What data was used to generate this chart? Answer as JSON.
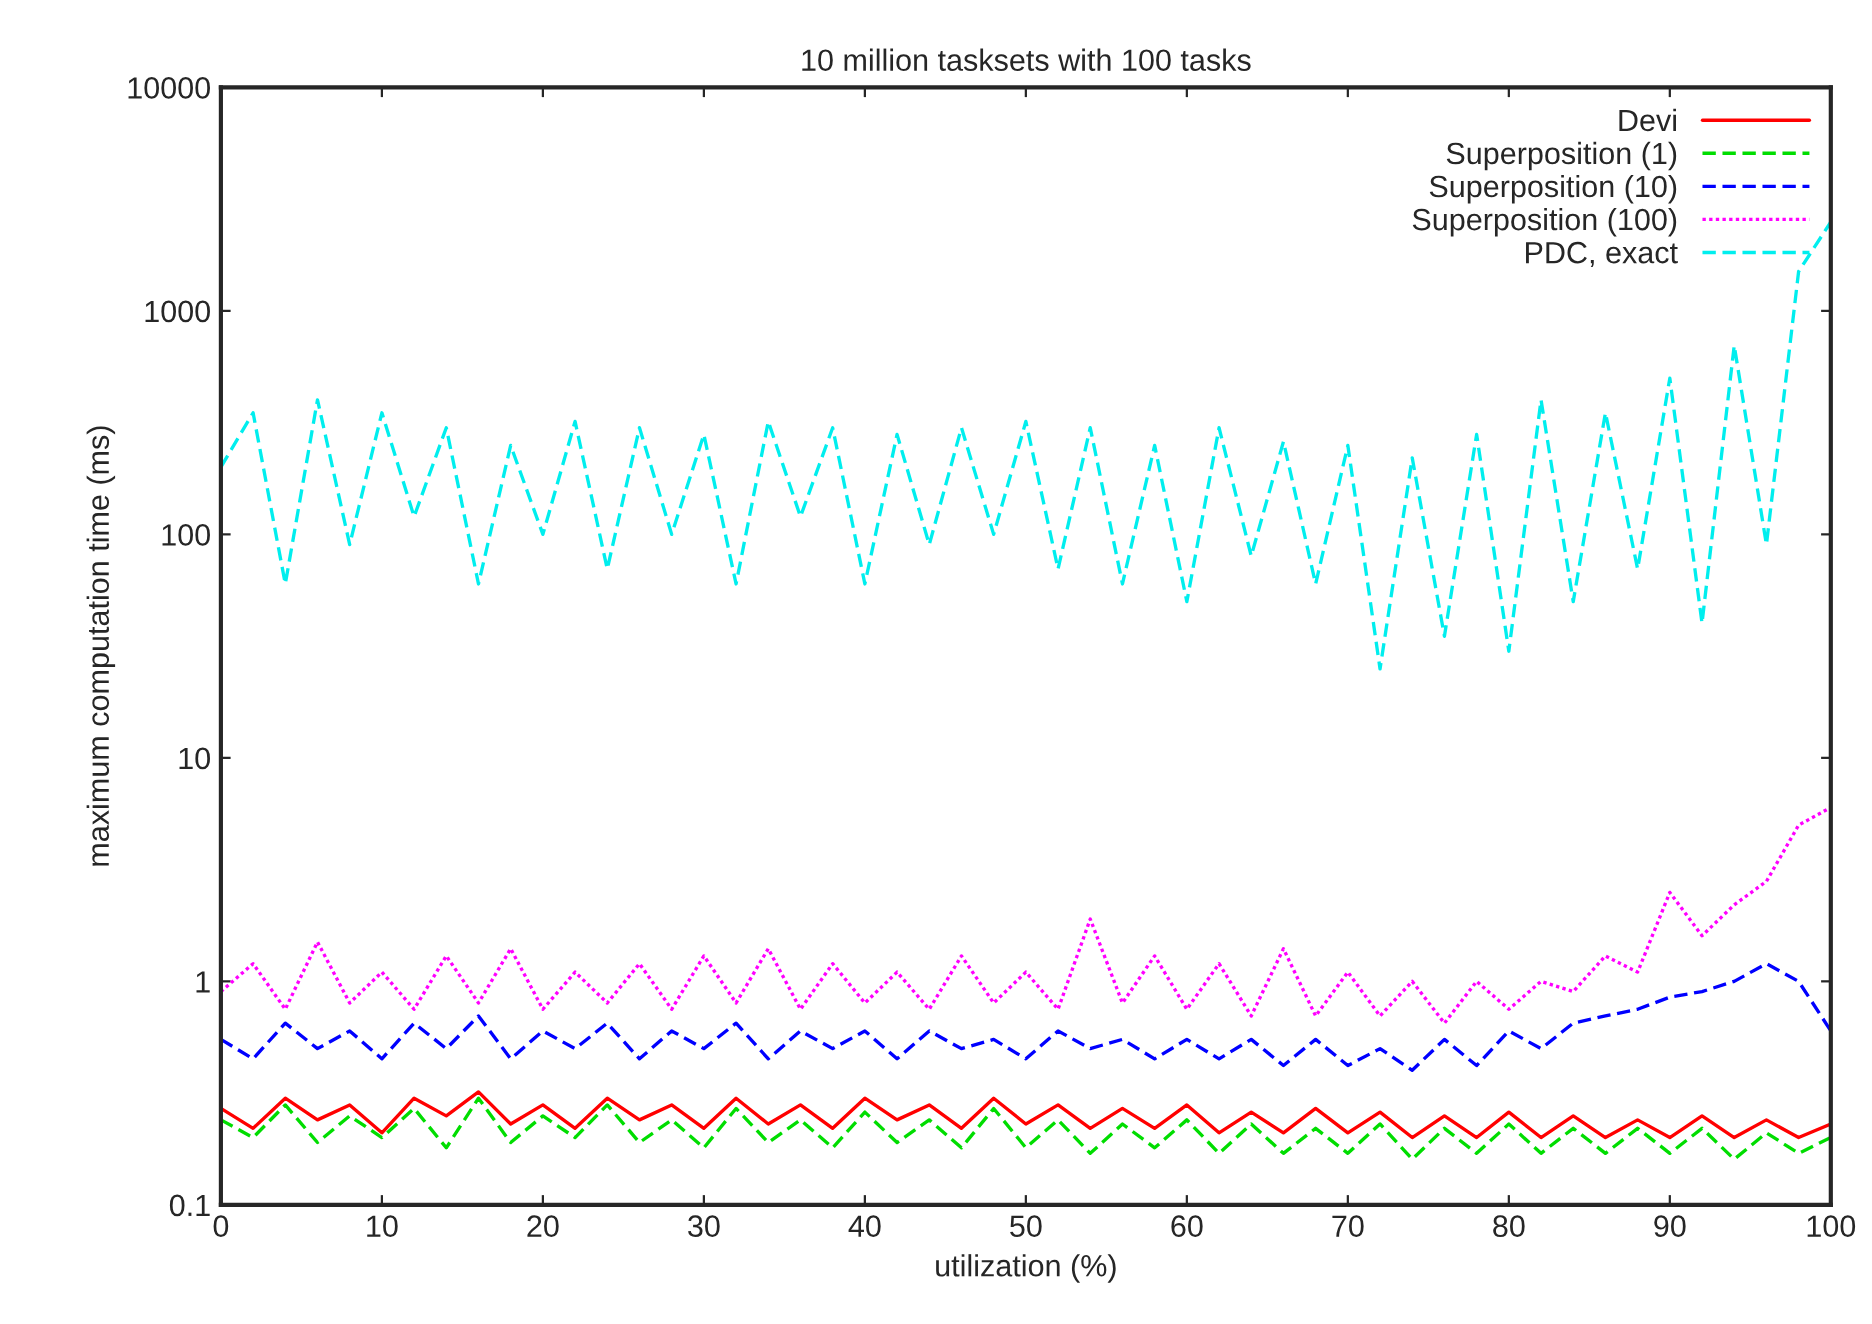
{
  "chart_data": {
    "type": "line",
    "title": "10 million tasksets with 100 tasks",
    "xlabel": "utilization (%)",
    "ylabel": "maximum computation time (ms)",
    "x": [
      0,
      2,
      4,
      6,
      8,
      10,
      12,
      14,
      16,
      18,
      20,
      22,
      24,
      26,
      28,
      30,
      32,
      34,
      36,
      38,
      40,
      42,
      44,
      46,
      48,
      50,
      52,
      54,
      56,
      58,
      60,
      62,
      64,
      66,
      68,
      70,
      72,
      74,
      76,
      78,
      80,
      82,
      84,
      86,
      88,
      90,
      92,
      94,
      96,
      98,
      100
    ],
    "xlim": [
      0,
      100
    ],
    "xticks": [
      0,
      10,
      20,
      30,
      40,
      50,
      60,
      70,
      80,
      90,
      100
    ],
    "ylim": [
      0.1,
      10000
    ],
    "yticks": [
      0.1,
      1,
      10,
      100,
      1000,
      10000
    ],
    "log": true,
    "grid": false,
    "legend": "top right",
    "series": [
      {
        "name": "Devi",
        "color": "#ff0000",
        "line_style": "solid",
        "values": [
          0.27,
          0.22,
          0.3,
          0.24,
          0.28,
          0.21,
          0.3,
          0.25,
          0.32,
          0.23,
          0.28,
          0.22,
          0.3,
          0.24,
          0.28,
          0.22,
          0.3,
          0.23,
          0.28,
          0.22,
          0.3,
          0.24,
          0.28,
          0.22,
          0.3,
          0.23,
          0.28,
          0.22,
          0.27,
          0.22,
          0.28,
          0.21,
          0.26,
          0.21,
          0.27,
          0.21,
          0.26,
          0.2,
          0.25,
          0.2,
          0.26,
          0.2,
          0.25,
          0.2,
          0.24,
          0.2,
          0.25,
          0.2,
          0.24,
          0.2,
          0.23
        ]
      },
      {
        "name": "Superposition (1)",
        "color": "#00dd00",
        "line_style": "dashed",
        "values": [
          0.24,
          0.2,
          0.28,
          0.19,
          0.25,
          0.2,
          0.27,
          0.18,
          0.3,
          0.19,
          0.25,
          0.2,
          0.28,
          0.19,
          0.24,
          0.18,
          0.27,
          0.19,
          0.24,
          0.18,
          0.26,
          0.19,
          0.24,
          0.18,
          0.27,
          0.18,
          0.24,
          0.17,
          0.23,
          0.18,
          0.24,
          0.17,
          0.23,
          0.17,
          0.22,
          0.17,
          0.23,
          0.16,
          0.22,
          0.17,
          0.23,
          0.17,
          0.22,
          0.17,
          0.22,
          0.17,
          0.22,
          0.16,
          0.21,
          0.17,
          0.2
        ]
      },
      {
        "name": "Superposition (10)",
        "color": "#0000ff",
        "line_style": "dashed",
        "values": [
          0.55,
          0.45,
          0.65,
          0.5,
          0.6,
          0.45,
          0.65,
          0.5,
          0.7,
          0.45,
          0.6,
          0.5,
          0.65,
          0.45,
          0.6,
          0.5,
          0.65,
          0.45,
          0.6,
          0.5,
          0.6,
          0.45,
          0.6,
          0.5,
          0.55,
          0.45,
          0.6,
          0.5,
          0.55,
          0.45,
          0.55,
          0.45,
          0.55,
          0.42,
          0.55,
          0.42,
          0.5,
          0.4,
          0.55,
          0.42,
          0.6,
          0.5,
          0.65,
          0.7,
          0.75,
          0.85,
          0.9,
          1.0,
          1.2,
          1.0,
          0.6
        ]
      },
      {
        "name": "Superposition (100)",
        "color": "#ff00ff",
        "line_style": "dotted",
        "values": [
          0.9,
          1.2,
          0.75,
          1.5,
          0.8,
          1.1,
          0.75,
          1.3,
          0.8,
          1.4,
          0.75,
          1.1,
          0.8,
          1.2,
          0.75,
          1.3,
          0.8,
          1.4,
          0.75,
          1.2,
          0.8,
          1.1,
          0.75,
          1.3,
          0.8,
          1.1,
          0.75,
          1.9,
          0.8,
          1.3,
          0.75,
          1.2,
          0.7,
          1.4,
          0.7,
          1.1,
          0.7,
          1.0,
          0.65,
          1.0,
          0.75,
          1.0,
          0.9,
          1.3,
          1.1,
          2.5,
          1.6,
          2.2,
          2.8,
          5,
          6
        ]
      },
      {
        "name": "PDC, exact",
        "color": "#00eeee",
        "line_style": "dashed",
        "values": [
          200,
          350,
          60,
          400,
          90,
          350,
          120,
          300,
          60,
          250,
          100,
          320,
          70,
          300,
          100,
          280,
          60,
          320,
          120,
          300,
          60,
          280,
          90,
          300,
          100,
          320,
          70,
          300,
          60,
          250,
          50,
          300,
          80,
          260,
          60,
          250,
          25,
          220,
          35,
          280,
          30,
          400,
          50,
          350,
          70,
          500,
          40,
          700,
          90,
          1500,
          2500
        ]
      }
    ]
  }
}
